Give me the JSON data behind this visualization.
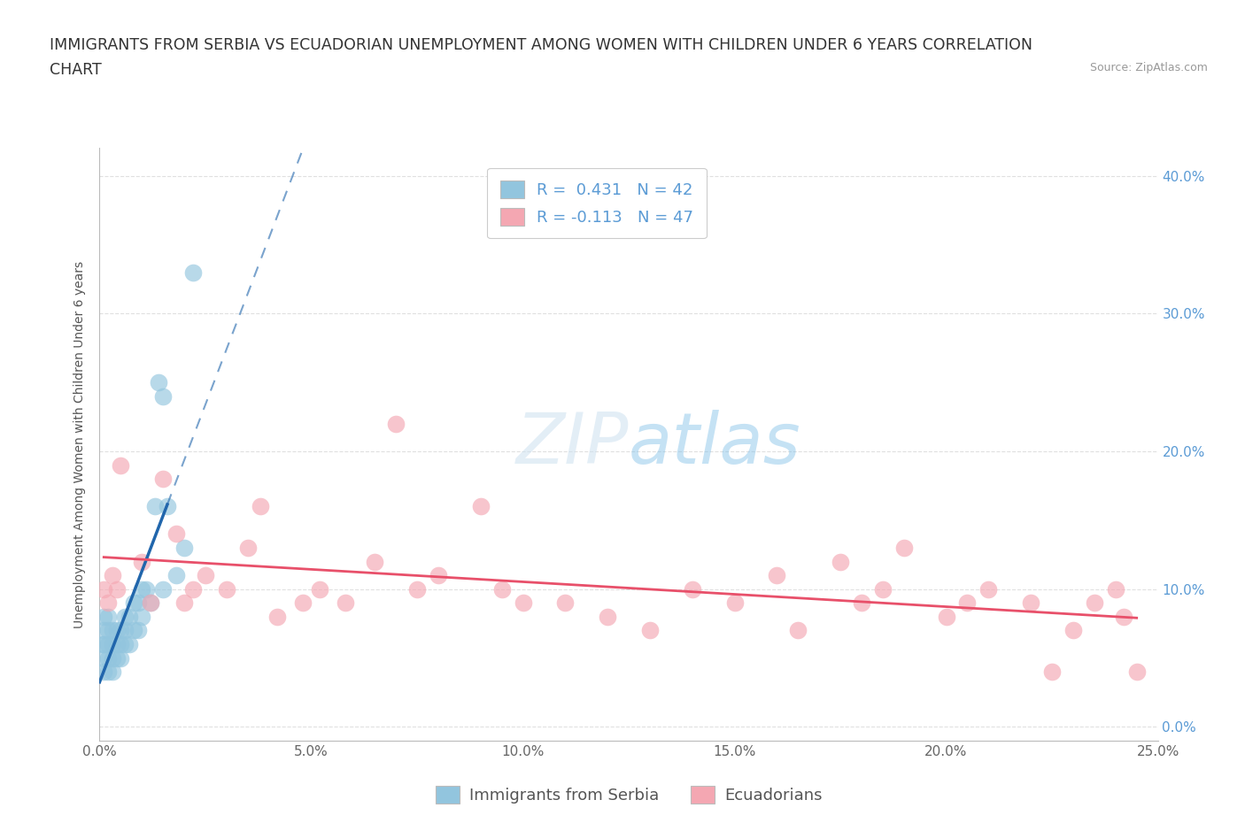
{
  "title_line1": "IMMIGRANTS FROM SERBIA VS ECUADORIAN UNEMPLOYMENT AMONG WOMEN WITH CHILDREN UNDER 6 YEARS CORRELATION",
  "title_line2": "CHART",
  "source": "Source: ZipAtlas.com",
  "ylabel": "Unemployment Among Women with Children Under 6 years",
  "xlim": [
    0.0,
    0.25
  ],
  "ylim": [
    -0.01,
    0.42
  ],
  "xticks": [
    0.0,
    0.05,
    0.1,
    0.15,
    0.2,
    0.25
  ],
  "yticks_right": [
    0.0,
    0.1,
    0.2,
    0.3,
    0.4
  ],
  "ytick_labels_right": [
    "0.0%",
    "10.0%",
    "20.0%",
    "30.0%",
    "40.0%"
  ],
  "xtick_labels": [
    "0.0%",
    "5.0%",
    "10.0%",
    "15.0%",
    "20.0%",
    "25.0%"
  ],
  "R_serbia": 0.431,
  "N_serbia": 42,
  "R_ecuador": -0.113,
  "N_ecuador": 47,
  "color_serbia": "#92c5de",
  "color_ecuador": "#f4a7b2",
  "trendline_color_serbia": "#2166ac",
  "trendline_color_ecuador": "#e8506a",
  "serbia_x": [
    0.001,
    0.001,
    0.001,
    0.001,
    0.001,
    0.001,
    0.002,
    0.002,
    0.002,
    0.002,
    0.002,
    0.003,
    0.003,
    0.003,
    0.003,
    0.004,
    0.004,
    0.004,
    0.005,
    0.005,
    0.005,
    0.006,
    0.006,
    0.006,
    0.007,
    0.007,
    0.008,
    0.008,
    0.009,
    0.009,
    0.01,
    0.01,
    0.011,
    0.012,
    0.013,
    0.014,
    0.015,
    0.015,
    0.016,
    0.018,
    0.02,
    0.022
  ],
  "serbia_y": [
    0.04,
    0.05,
    0.06,
    0.06,
    0.07,
    0.08,
    0.04,
    0.05,
    0.06,
    0.07,
    0.08,
    0.04,
    0.05,
    0.06,
    0.07,
    0.05,
    0.06,
    0.07,
    0.05,
    0.06,
    0.07,
    0.06,
    0.07,
    0.08,
    0.06,
    0.08,
    0.07,
    0.09,
    0.07,
    0.09,
    0.08,
    0.1,
    0.1,
    0.09,
    0.16,
    0.25,
    0.1,
    0.24,
    0.16,
    0.11,
    0.13,
    0.33
  ],
  "ecuador_x": [
    0.001,
    0.002,
    0.003,
    0.004,
    0.005,
    0.01,
    0.012,
    0.015,
    0.018,
    0.02,
    0.022,
    0.025,
    0.03,
    0.035,
    0.038,
    0.042,
    0.048,
    0.052,
    0.058,
    0.065,
    0.07,
    0.075,
    0.08,
    0.09,
    0.095,
    0.1,
    0.11,
    0.12,
    0.13,
    0.14,
    0.15,
    0.16,
    0.165,
    0.175,
    0.18,
    0.185,
    0.19,
    0.2,
    0.205,
    0.21,
    0.22,
    0.225,
    0.23,
    0.235,
    0.24,
    0.242,
    0.245
  ],
  "ecuador_y": [
    0.1,
    0.09,
    0.11,
    0.1,
    0.19,
    0.12,
    0.09,
    0.18,
    0.14,
    0.09,
    0.1,
    0.11,
    0.1,
    0.13,
    0.16,
    0.08,
    0.09,
    0.1,
    0.09,
    0.12,
    0.22,
    0.1,
    0.11,
    0.16,
    0.1,
    0.09,
    0.09,
    0.08,
    0.07,
    0.1,
    0.09,
    0.11,
    0.07,
    0.12,
    0.09,
    0.1,
    0.13,
    0.08,
    0.09,
    0.1,
    0.09,
    0.04,
    0.07,
    0.09,
    0.1,
    0.08,
    0.04
  ],
  "background_color": "#ffffff",
  "grid_color": "#e0e0e0",
  "title_fontsize": 12.5,
  "axis_fontsize": 10,
  "tick_fontsize": 11,
  "legend_fontsize": 13
}
